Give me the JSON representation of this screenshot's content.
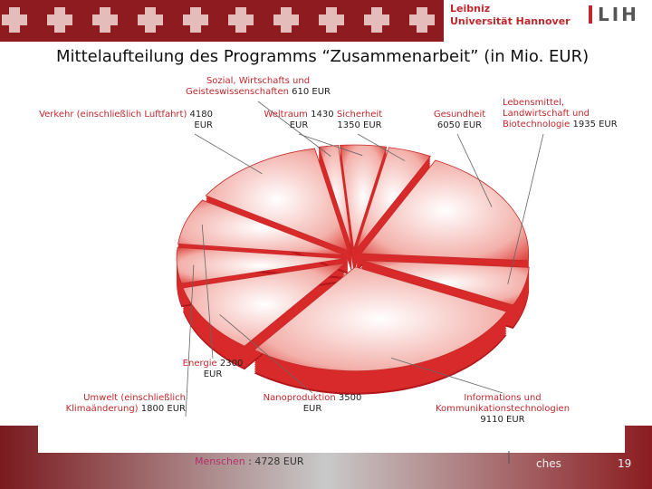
{
  "header": {
    "logo_line1": "Leibniz",
    "logo_line2": "Universität Hannover",
    "logo_mark": "L I H"
  },
  "chart_data": {
    "type": "pie",
    "title": "Mittelaufteilung des Programms “Zusammenarbeit” (in Mio. EUR)",
    "categories": [
      "Sozial, Wirtschafts und Geisteswissenschaften",
      "Weltraum",
      "Sicherheit",
      "Gesundheit",
      "Lebensmittel, Landwirtschaft und Biotechnologie",
      "Informations und Kommunikationstechnologien",
      "Nanoproduktion",
      "Umwelt (einschließlich Klimaänderung)",
      "Energie",
      "Verkehr (einschließlich Luftfahrt)"
    ],
    "values": [
      610,
      1430,
      1350,
      6050,
      1935,
      9110,
      3500,
      1800,
      2300,
      4180
    ],
    "value_labels": [
      "610 EUR",
      "1430 EUR",
      "1350 EUR",
      "6050 EUR",
      "1935 EUR",
      "9110 EUR",
      "3500 EUR",
      "1800 EUR",
      "2300 EUR",
      "4180 EUR"
    ],
    "color": "#d82a2a"
  },
  "annotation": {
    "name": "Menschen",
    "text": ": 4728 EUR"
  },
  "footer": {
    "text": "ches",
    "page": "19"
  }
}
